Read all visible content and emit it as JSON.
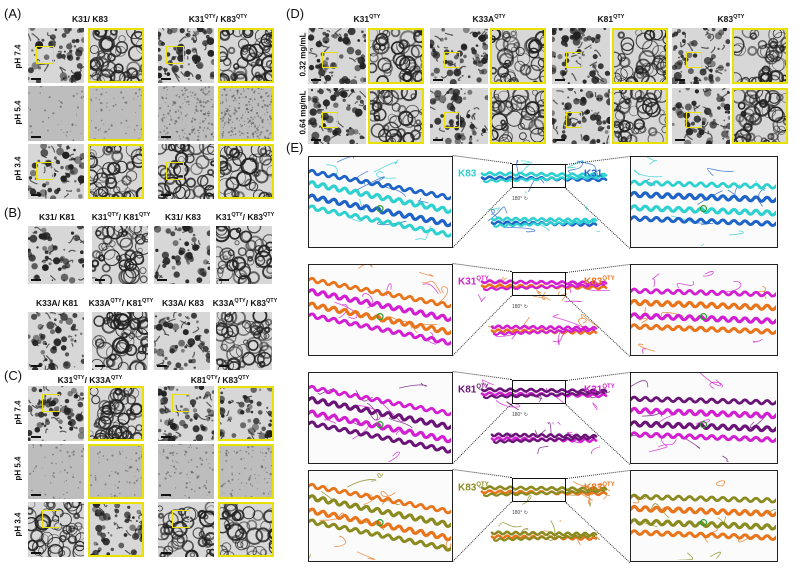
{
  "panels": {
    "A": "(A)",
    "B": "(B)",
    "C": "(C)",
    "D": "(D)",
    "E": "(E)"
  },
  "panelA": {
    "col1": "K31/ K83",
    "col2_main": "K31",
    "col2_sup1": "QTY",
    "col2_mid": "/ K83",
    "col2_sup2": "QTY",
    "rows": [
      "pH 7.4",
      "pH 5.4",
      "pH 3.4"
    ]
  },
  "panelB": {
    "row1": [
      {
        "main": "K31/ K81",
        "sup": "",
        "mid": "",
        "sup2": ""
      },
      {
        "main": "K31",
        "sup": "QTY",
        "mid": "/ K81",
        "sup2": "QTY"
      },
      {
        "main": "K31/ K83",
        "sup": "",
        "mid": "",
        "sup2": ""
      },
      {
        "main": "K31",
        "sup": "QTY",
        "mid": "/ K83",
        "sup2": "QTY"
      }
    ],
    "row2": [
      {
        "main": "K33A/ K81",
        "sup": "",
        "mid": "",
        "sup2": ""
      },
      {
        "main": "K33A",
        "sup": "QTY",
        "mid": "/ K81",
        "sup2": "QTY"
      },
      {
        "main": "K33A/ K83",
        "sup": "",
        "mid": "",
        "sup2": ""
      },
      {
        "main": "K33A",
        "sup": "QTY",
        "mid": "/ K83",
        "sup2": "QTY"
      }
    ]
  },
  "panelC": {
    "col1_main": "K31",
    "col1_sup1": "QTY",
    "col1_mid": "/ K33A",
    "col1_sup2": "QTY",
    "col2_main": "K81",
    "col2_sup1": "QTY",
    "col2_mid": "/ K83",
    "col2_sup2": "QTY",
    "rows": [
      "pH 7.4",
      "pH 5.4",
      "pH 3.4"
    ]
  },
  "panelD": {
    "cols": [
      {
        "main": "K31",
        "sup": "QTY"
      },
      {
        "main": "K33A",
        "sup": "QTY"
      },
      {
        "main": "K81",
        "sup": "QTY"
      },
      {
        "main": "K83",
        "sup": "QTY"
      }
    ],
    "rows": [
      "0.32 mg/mL",
      "0.64 mg/mL"
    ]
  },
  "panelE": {
    "rotation": "180°",
    "rows": [
      {
        "left": "K83",
        "left_sup": "",
        "right": "K31",
        "right_sup": "",
        "left_color": "#2fd0d0",
        "right_color": "#1e63c8"
      },
      {
        "left": "K31",
        "left_sup": "QTY",
        "right": "K83",
        "right_sup": "QTY",
        "left_color": "#d21fd2",
        "right_color": "#e8741c"
      },
      {
        "left": "K81",
        "left_sup": "QTY",
        "right": "K31",
        "right_sup": "QTY",
        "left_color": "#6a1478",
        "right_color": "#d21fd2"
      },
      {
        "left": "K83",
        "left_sup": "QTY",
        "right": "K83",
        "right_sup": "QTY",
        "left_color": "#8a8a1e",
        "right_color": "#e8741c"
      }
    ]
  },
  "colors": {
    "highlight": "#e8e000",
    "cyan": "#2fd0d0",
    "blue": "#1e63c8",
    "magenta": "#d21fd2",
    "orange": "#e8741c",
    "purple": "#6a1478",
    "olive": "#8a8a1e"
  }
}
